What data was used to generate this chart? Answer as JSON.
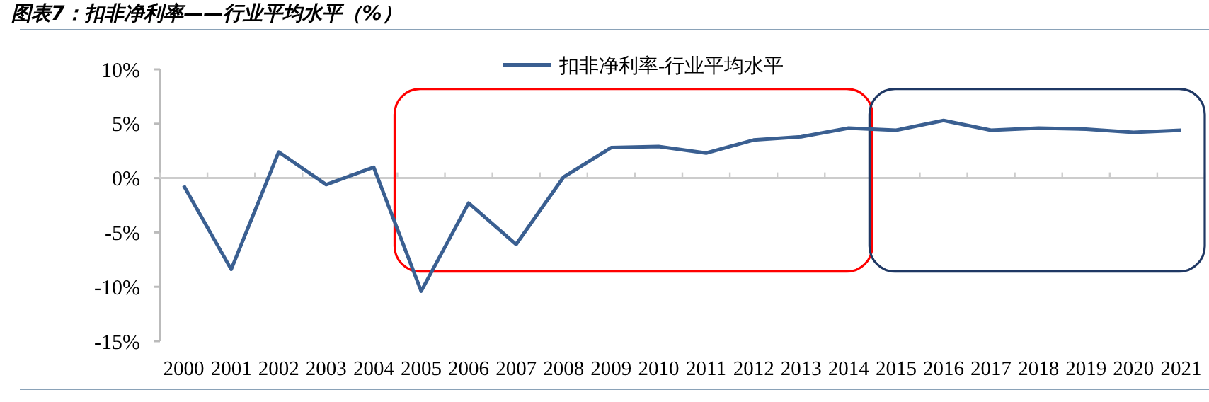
{
  "chart_data": {
    "type": "line",
    "title": "图表7：扣非净利率——行业平均水平（%）",
    "categories": [
      "2000",
      "2001",
      "2002",
      "2003",
      "2004",
      "2005",
      "2006",
      "2007",
      "2008",
      "2009",
      "2010",
      "2011",
      "2012",
      "2013",
      "2014",
      "2015",
      "2016",
      "2017",
      "2018",
      "2019",
      "2020",
      "2021"
    ],
    "series": [
      {
        "name": "扣非净利率-行业平均水平",
        "color": "#3a5f91",
        "values": [
          -0.7,
          -8.4,
          2.4,
          -0.6,
          1.0,
          -10.4,
          -2.3,
          -6.1,
          0.1,
          2.8,
          2.9,
          2.3,
          3.5,
          3.8,
          4.6,
          4.4,
          5.3,
          4.4,
          4.6,
          4.5,
          4.2,
          4.4
        ]
      }
    ],
    "ylim": [
      -15,
      10
    ],
    "yticks": [
      {
        "value": -15,
        "label": "-15%"
      },
      {
        "value": -10,
        "label": "-10%"
      },
      {
        "value": -5,
        "label": "-5%"
      },
      {
        "value": 0,
        "label": "0%"
      },
      {
        "value": 5,
        "label": "5%"
      },
      {
        "value": 10,
        "label": "10%"
      }
    ],
    "legend": "top right",
    "marker": "none",
    "line_style": "solid"
  }
}
